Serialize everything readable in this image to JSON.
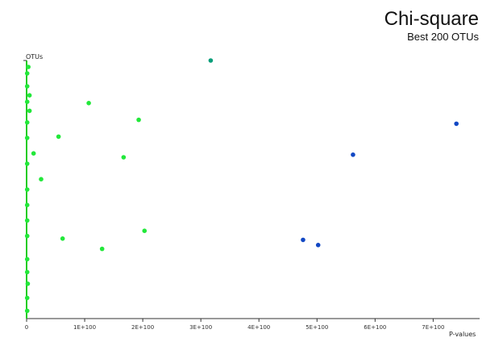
{
  "chart_data": {
    "type": "scatter",
    "title": "Chi-square",
    "subtitle": "Best 200 OTUs",
    "xlabel": "P-values",
    "ylabel": "OTUs",
    "xlim": [
      0,
      7.8
    ],
    "ylim": [
      0,
      100
    ],
    "x_ticks": [
      "0",
      "1E+100",
      "2E+100",
      "3E+100",
      "4E+100",
      "5E+100",
      "6E+100",
      "7E+100"
    ],
    "x_tick_values": [
      0,
      1,
      2,
      3,
      4,
      5,
      6,
      7
    ],
    "grid": false,
    "colors": {
      "low": "#22e83a",
      "mid": "#0a9e7a",
      "high": "#1248c4",
      "axis": "#333333",
      "y_line": "#22cc22"
    },
    "points": [
      {
        "x": 0.03,
        "y": 97.5
      },
      {
        "x": 0.05,
        "y": 86.5
      },
      {
        "x": 0.05,
        "y": 80.5
      },
      {
        "x": 0.12,
        "y": 64.0
      },
      {
        "x": 0.25,
        "y": 54.0
      },
      {
        "x": 0.02,
        "y": 13.5
      },
      {
        "x": 0.55,
        "y": 70.5
      },
      {
        "x": 0.62,
        "y": 31.0
      },
      {
        "x": 1.07,
        "y": 83.5
      },
      {
        "x": 1.3,
        "y": 27.0
      },
      {
        "x": 1.67,
        "y": 62.5
      },
      {
        "x": 1.93,
        "y": 77.0
      },
      {
        "x": 2.03,
        "y": 34.0
      },
      {
        "x": 3.17,
        "y": 100.0
      },
      {
        "x": 4.76,
        "y": 30.5
      },
      {
        "x": 5.02,
        "y": 28.5
      },
      {
        "x": 5.62,
        "y": 63.5
      },
      {
        "x": 7.4,
        "y": 75.5
      },
      {
        "x": 0.01,
        "y": 95.0
      },
      {
        "x": 0.01,
        "y": 90.0
      },
      {
        "x": 0.01,
        "y": 84.0
      },
      {
        "x": 0.01,
        "y": 76.0
      },
      {
        "x": 0.01,
        "y": 70.0
      },
      {
        "x": 0.01,
        "y": 60.0
      },
      {
        "x": 0.01,
        "y": 50.0
      },
      {
        "x": 0.01,
        "y": 44.0
      },
      {
        "x": 0.01,
        "y": 38.0
      },
      {
        "x": 0.01,
        "y": 32.0
      },
      {
        "x": 0.01,
        "y": 23.0
      },
      {
        "x": 0.01,
        "y": 18.0
      },
      {
        "x": 0.01,
        "y": 8.0
      },
      {
        "x": 0.01,
        "y": 3.0
      }
    ]
  }
}
